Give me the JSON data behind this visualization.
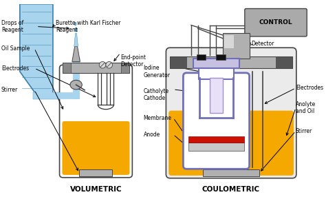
{
  "bg_color": "#ffffff",
  "vol_label": "VOLUMETRIC",
  "coul_label": "COULOMETRIC",
  "control_label": "CONTROL",
  "yellow_color": "#F5A800",
  "blue_reagent": "#6AAFD6",
  "blue_dark": "#3A7FAA",
  "blue_light": "#A8D4EE",
  "gray_color": "#888888",
  "dark_gray": "#444444",
  "silver": "#B0B0B0",
  "silver_light": "#D8D8D8",
  "purple": "#7070B8",
  "purple_light": "#A090CC",
  "red_color": "#CC1100",
  "white": "#FFFFFF",
  "black_cap": "#222222"
}
